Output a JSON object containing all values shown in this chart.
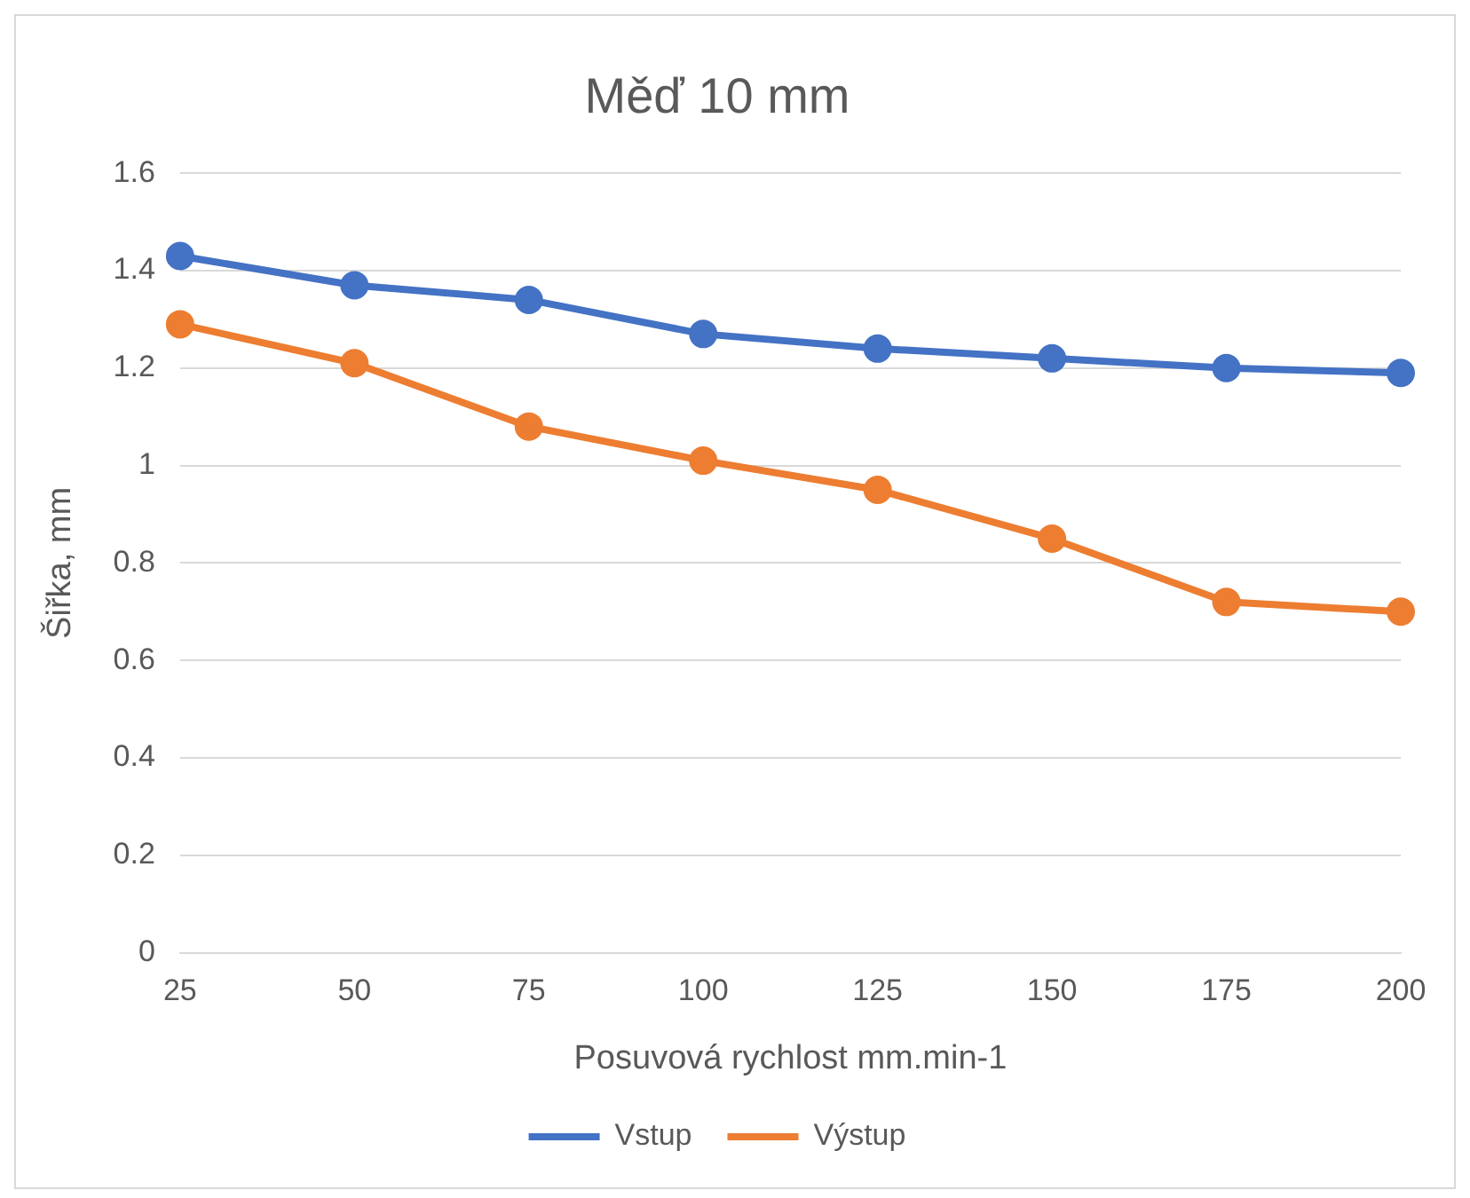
{
  "chart_data": {
    "type": "line",
    "title": "Měď 10 mm",
    "xlabel": "Posuvová rychlost mm.min-1",
    "ylabel": "Šiřka, mm",
    "categories": [
      "25",
      "50",
      "75",
      "100",
      "125",
      "150",
      "175",
      "200"
    ],
    "series": [
      {
        "name": "Vstup",
        "color": "#4472c4",
        "values": [
          1.43,
          1.37,
          1.34,
          1.27,
          1.24,
          1.22,
          1.2,
          1.19
        ]
      },
      {
        "name": "Výstup",
        "color": "#ed7d31",
        "values": [
          1.29,
          1.21,
          1.08,
          1.01,
          0.95,
          0.85,
          0.72,
          0.7
        ]
      }
    ],
    "ylim": [
      0,
      1.6
    ],
    "yticks": [
      0,
      0.2,
      0.4,
      0.6,
      0.8,
      1,
      1.2,
      1.4,
      1.6
    ],
    "grid": "y",
    "legend": "bottom",
    "marker": "circle",
    "line_style": "solid"
  }
}
